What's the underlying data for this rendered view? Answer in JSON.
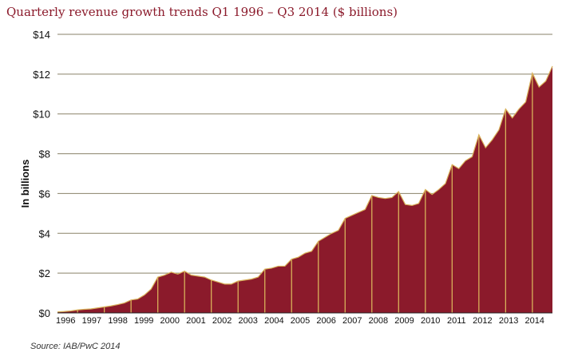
{
  "title": "Quarterly revenue growth trends Q1 1996 – Q3 2014 ($ billions)",
  "source": "Source: IAB/PwC 2014",
  "chart_data": {
    "type": "area",
    "title": "Quarterly revenue growth trends Q1 1996 – Q3 2014 ($ billions)",
    "ylabel": "In billions",
    "xlabel": "",
    "ylim": [
      0,
      14
    ],
    "y_ticks": [
      0,
      2,
      4,
      6,
      8,
      10,
      12,
      14
    ],
    "y_tick_labels": [
      "$0",
      "$2",
      "$4",
      "$6",
      "$8",
      "$10",
      "$12",
      "$14"
    ],
    "year_labels": [
      "1996",
      "1997",
      "1998",
      "1999",
      "2000",
      "2001",
      "2002",
      "2003",
      "2004",
      "2005",
      "2006",
      "2007",
      "2008",
      "2009",
      "2010",
      "2011",
      "2012",
      "2013",
      "2014"
    ],
    "grid": "horizontal",
    "fill_color": "#8b1a2b",
    "line_color": "#d8b15a",
    "gridline_color": "#8a8269",
    "series": [
      {
        "values": [
          0.05,
          0.07,
          0.1,
          0.15,
          0.18,
          0.2,
          0.25,
          0.3,
          0.35,
          0.42,
          0.5,
          0.65,
          0.7,
          0.9,
          1.2,
          1.8,
          1.9,
          2.05,
          1.95,
          2.1,
          1.9,
          1.85,
          1.8,
          1.65,
          1.55,
          1.45,
          1.45,
          1.6,
          1.65,
          1.7,
          1.8,
          2.2,
          2.25,
          2.35,
          2.35,
          2.7,
          2.8,
          3.0,
          3.1,
          3.6,
          3.8,
          4.0,
          4.15,
          4.75,
          4.9,
          5.05,
          5.2,
          5.9,
          5.8,
          5.75,
          5.8,
          6.1,
          5.45,
          5.4,
          5.5,
          6.2,
          5.95,
          6.2,
          6.5,
          7.45,
          7.25,
          7.65,
          7.85,
          8.95,
          8.3,
          8.7,
          9.2,
          10.25,
          9.8,
          10.25,
          10.6,
          12.05,
          11.35,
          11.65,
          12.4
        ]
      }
    ]
  }
}
